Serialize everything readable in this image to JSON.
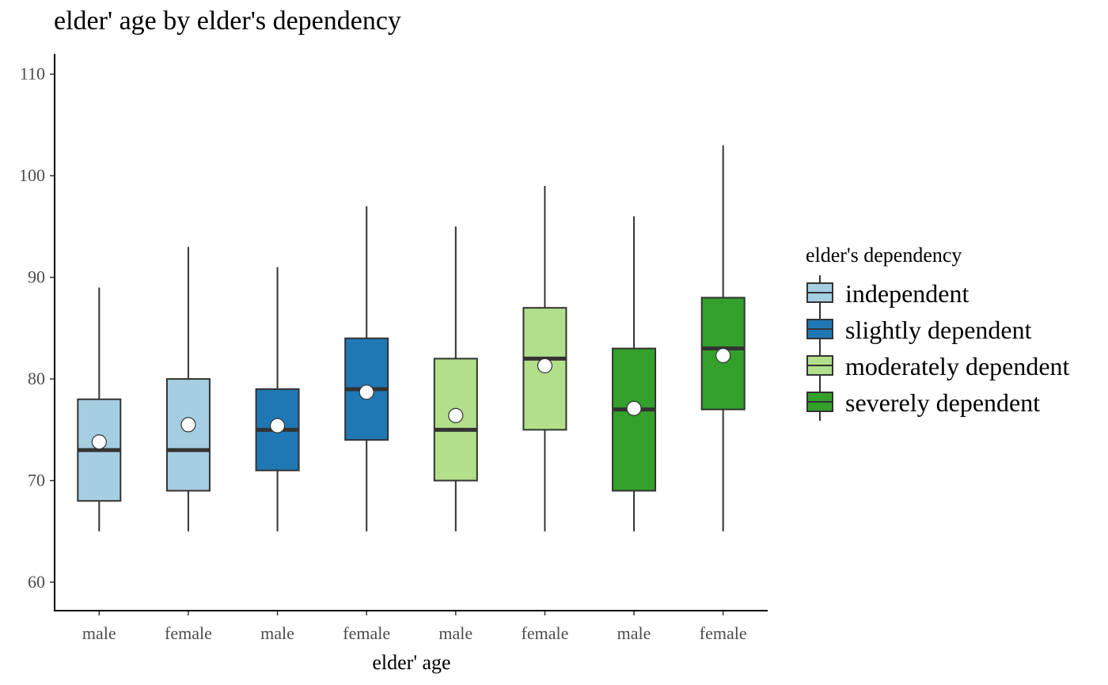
{
  "chart_data": {
    "type": "boxplot",
    "title": "elder' age by elder's dependency",
    "xlabel": "elder' age",
    "ylabel": "",
    "ylim": [
      57.2,
      112
    ],
    "yticks": [
      60,
      70,
      80,
      90,
      100,
      110
    ],
    "legend": {
      "title": "elder's dependency",
      "position": "right",
      "entries": [
        {
          "label": "independent",
          "color": "#A6CEE3"
        },
        {
          "label": "slightly dependent",
          "color": "#1F78B4"
        },
        {
          "label": "moderately dependent",
          "color": "#B2DF8A"
        },
        {
          "label": "severely dependent",
          "color": "#33A02C"
        }
      ]
    },
    "boxes": [
      {
        "category": "male",
        "group": "independent",
        "color": "#A6CEE3",
        "min": 65,
        "q1": 68,
        "median": 73,
        "q3": 78,
        "max": 89,
        "mean": 73.8
      },
      {
        "category": "female",
        "group": "independent",
        "color": "#A6CEE3",
        "min": 65,
        "q1": 69,
        "median": 73,
        "q3": 80,
        "max": 93,
        "mean": 75.5
      },
      {
        "category": "male",
        "group": "slightly dependent",
        "color": "#1F78B4",
        "min": 65,
        "q1": 71,
        "median": 75,
        "q3": 79,
        "max": 91,
        "mean": 75.4
      },
      {
        "category": "female",
        "group": "slightly dependent",
        "color": "#1F78B4",
        "min": 65,
        "q1": 74,
        "median": 79,
        "q3": 84,
        "max": 97,
        "mean": 78.7
      },
      {
        "category": "male",
        "group": "moderately dependent",
        "color": "#B2DF8A",
        "min": 65,
        "q1": 70,
        "median": 75,
        "q3": 82,
        "max": 95,
        "mean": 76.4
      },
      {
        "category": "female",
        "group": "moderately dependent",
        "color": "#B2DF8A",
        "min": 65,
        "q1": 75,
        "median": 82,
        "q3": 87,
        "max": 99,
        "mean": 81.3
      },
      {
        "category": "male",
        "group": "severely dependent",
        "color": "#33A02C",
        "min": 65,
        "q1": 69,
        "median": 77,
        "q3": 83,
        "max": 96,
        "mean": 77.1
      },
      {
        "category": "female",
        "group": "severely dependent",
        "color": "#33A02C",
        "min": 65,
        "q1": 77,
        "median": 83,
        "q3": 88,
        "max": 103,
        "mean": 82.3
      }
    ]
  }
}
